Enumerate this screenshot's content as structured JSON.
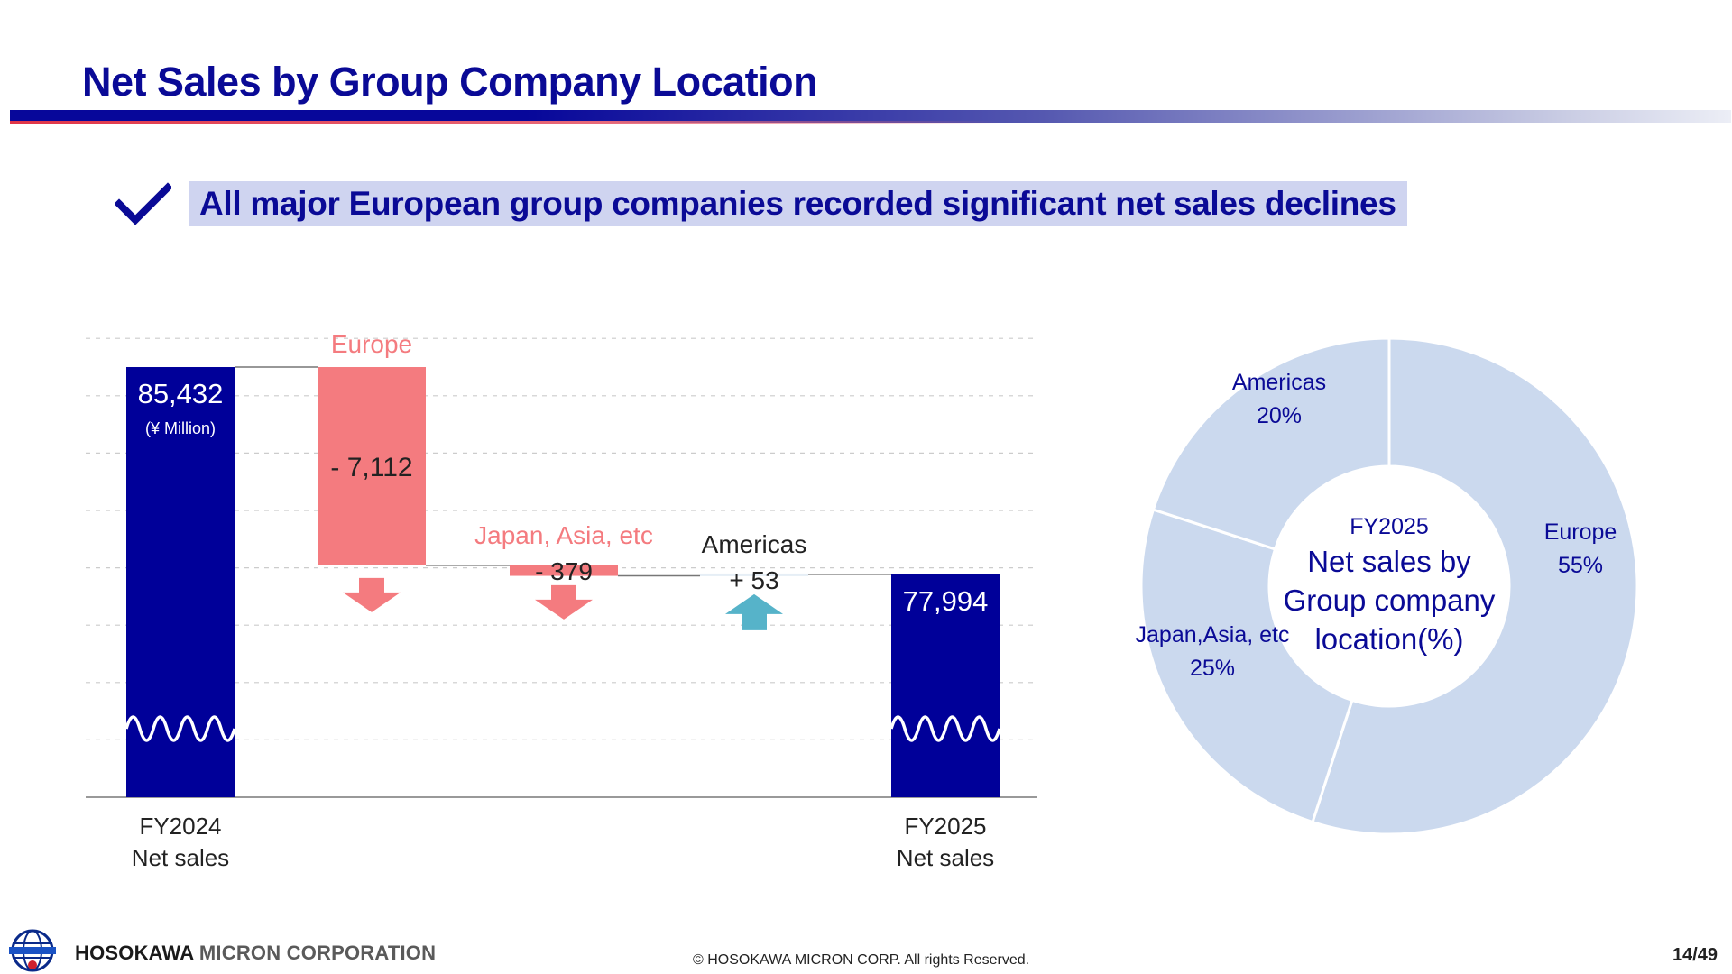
{
  "header": {
    "title": "Net Sales by Group Company Location"
  },
  "headline": {
    "text": "All major European group companies recorded significant net sales declines"
  },
  "colors": {
    "navy": "#000099",
    "decrease": "#f47b7f",
    "increase": "#56b3c9",
    "donut_fill": "#cbd9ee",
    "title_blue": "#0a0a96"
  },
  "chart_data": [
    {
      "type": "bar",
      "subtype": "waterfall",
      "unit": "(¥ Million)",
      "ylim": [
        70000,
        86500
      ],
      "axis_break": true,
      "grid": true,
      "steps": [
        {
          "label": "FY2024\nNet sales",
          "kind": "total",
          "value": 85432,
          "display": "85,432"
        },
        {
          "label": "Europe",
          "kind": "delta",
          "value": -7112,
          "display": "- 7,112"
        },
        {
          "label": "Japan, Asia, etc",
          "kind": "delta",
          "value": -379,
          "display": "- 379"
        },
        {
          "label": "Americas",
          "kind": "delta",
          "value": 53,
          "display": "+ 53"
        },
        {
          "label": "FY2025\nNet sales",
          "kind": "total",
          "value": 77994,
          "display": "77,994"
        }
      ]
    },
    {
      "type": "pie",
      "subtype": "donut",
      "center_label_small": "FY2025",
      "center_label": [
        "Net sales by",
        "Group company",
        "location(%)"
      ],
      "slices": [
        {
          "label": "Europe",
          "value": 55,
          "display": "55%"
        },
        {
          "label": "Japan,Asia, etc",
          "value": 25,
          "display": "25%"
        },
        {
          "label": "Americas",
          "value": 20,
          "display": "20%"
        }
      ]
    }
  ],
  "footer": {
    "company_bold": "HOSOKAWA",
    "company_rest": "MICRON CORPORATION",
    "logo_text": "HOSOKAWA MICRON",
    "copyright": "© HOSOKAWA MICRON CORP.   All rights Reserved.",
    "page": "14/49"
  }
}
